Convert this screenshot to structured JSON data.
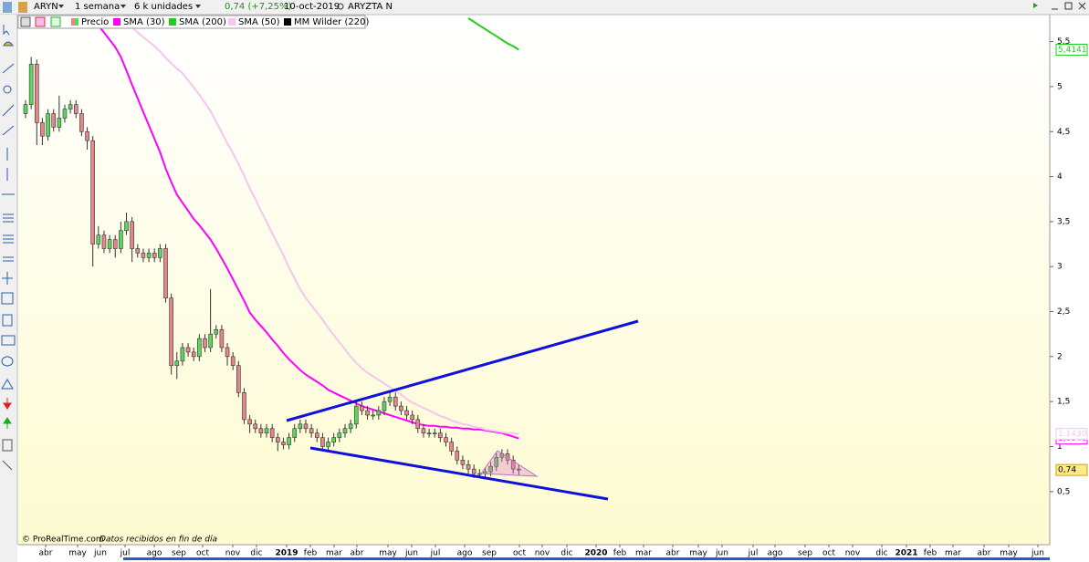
{
  "toolbar": {
    "symbol": "ARYN",
    "period": "1 semana",
    "units": "6 k unidades",
    "quote": "0,74 (+7,25%)",
    "date": "10-oct-2019",
    "name": "ARYZTA N"
  },
  "footer": {
    "copyright": "© ProRealTime.com",
    "note": "Datos recibidos en fin de día"
  },
  "chart_data": {
    "type": "candlestick",
    "ylim": [
      -0.09,
      5.78
    ],
    "yticks": [
      {
        "value": 0.5,
        "label": "0,5"
      },
      1,
      {
        "value": 1.5,
        "label": "1,5"
      },
      2,
      {
        "value": 2.5,
        "label": "2,5"
      },
      3,
      {
        "value": 3.5,
        "label": "3,5"
      },
      4,
      {
        "value": 4.5,
        "label": "4,5"
      },
      5,
      {
        "value": 5.5,
        "label": "5,5"
      }
    ],
    "x_labels": [
      "abr",
      "may",
      "jun",
      "jul",
      "ago",
      "sep",
      "oct",
      "nov",
      "dic",
      "2019",
      "feb",
      "mar",
      "abr",
      "may",
      "jun",
      "jul",
      "ago",
      "sep",
      "oct",
      "nov",
      "dic",
      "2020",
      "feb",
      "mar",
      "abr",
      "may",
      "jun",
      "jul",
      "ago",
      "sep",
      "oct",
      "nov",
      "dic",
      "2021",
      "feb",
      "mar",
      "abr",
      "may",
      "jun"
    ],
    "candles": {
      "name": "Precio",
      "color_up": "#5fd35f",
      "color_down": "#e3878b",
      "last_label": "0,74",
      "open": [
        4.7,
        4.8,
        5.25,
        4.6,
        4.45,
        4.7,
        4.55,
        4.65,
        4.75,
        4.8,
        4.7,
        4.5,
        4.4,
        3.25,
        3.35,
        3.2,
        3.3,
        3.2,
        3.4,
        3.5,
        3.2,
        3.15,
        3.1,
        3.15,
        3.1,
        3.2,
        2.65,
        1.9,
        1.95,
        2.1,
        2.05,
        2.0,
        2.2,
        2.1,
        2.25,
        2.3,
        2.1,
        2.0,
        1.9,
        1.6,
        1.3,
        1.25,
        1.2,
        1.15,
        1.2,
        1.1,
        1.05,
        1.02,
        1.1,
        1.2,
        1.25,
        1.2,
        1.15,
        1.1,
        1.0,
        1.05,
        1.1,
        1.15,
        1.2,
        1.25,
        1.45,
        1.4,
        1.35,
        1.35,
        1.4,
        1.5,
        1.55,
        1.45,
        1.4,
        1.35,
        1.3,
        1.2,
        1.15,
        1.15,
        1.15,
        1.1,
        1.05,
        0.95,
        0.85,
        0.8,
        0.75,
        0.7,
        0.7,
        0.72,
        0.78,
        0.88,
        0.92,
        0.85,
        0.75
      ],
      "high": [
        4.85,
        5.33,
        5.3,
        4.65,
        4.75,
        4.75,
        4.9,
        4.8,
        4.85,
        4.85,
        4.75,
        4.55,
        4.45,
        3.45,
        3.4,
        3.35,
        3.35,
        3.5,
        3.6,
        3.55,
        3.25,
        3.2,
        3.2,
        3.2,
        3.25,
        3.25,
        2.7,
        2.05,
        2.15,
        2.15,
        2.1,
        2.25,
        2.25,
        2.75,
        2.35,
        2.35,
        2.15,
        2.05,
        1.95,
        1.65,
        1.35,
        1.3,
        1.25,
        1.25,
        1.25,
        1.15,
        1.1,
        1.15,
        1.25,
        1.3,
        1.3,
        1.25,
        1.2,
        1.15,
        1.1,
        1.15,
        1.2,
        1.25,
        1.3,
        1.5,
        1.5,
        1.45,
        1.4,
        1.45,
        1.55,
        1.6,
        1.6,
        1.5,
        1.45,
        1.4,
        1.35,
        1.25,
        1.2,
        1.2,
        1.2,
        1.15,
        1.1,
        1.0,
        0.9,
        0.85,
        0.8,
        0.75,
        0.77,
        0.83,
        0.93,
        0.97,
        0.97,
        0.9,
        0.8
      ],
      "low": [
        4.65,
        4.75,
        4.35,
        4.35,
        4.4,
        4.5,
        4.5,
        4.6,
        4.7,
        4.65,
        4.45,
        4.3,
        3.0,
        3.2,
        3.15,
        3.15,
        3.1,
        3.15,
        3.35,
        3.05,
        3.1,
        3.05,
        3.05,
        3.05,
        3.05,
        2.6,
        1.8,
        1.75,
        1.9,
        2.0,
        1.95,
        1.95,
        2.05,
        2.05,
        2.2,
        2.05,
        1.9,
        1.85,
        1.55,
        1.25,
        1.15,
        1.15,
        1.1,
        1.1,
        1.05,
        0.95,
        0.97,
        0.97,
        1.05,
        1.15,
        1.15,
        1.1,
        1.05,
        0.95,
        0.95,
        1.0,
        1.05,
        1.1,
        1.15,
        1.2,
        1.35,
        1.3,
        1.3,
        1.3,
        1.35,
        1.45,
        1.4,
        1.35,
        1.3,
        1.25,
        1.15,
        1.1,
        1.1,
        1.1,
        1.05,
        1.0,
        0.9,
        0.8,
        0.75,
        0.7,
        0.65,
        0.65,
        0.65,
        0.67,
        0.73,
        0.83,
        0.8,
        0.7,
        0.68
      ],
      "close": [
        4.8,
        5.25,
        4.6,
        4.45,
        4.7,
        4.55,
        4.65,
        4.75,
        4.8,
        4.7,
        4.5,
        4.4,
        3.25,
        3.35,
        3.2,
        3.3,
        3.2,
        3.4,
        3.5,
        3.2,
        3.15,
        3.1,
        3.15,
        3.1,
        3.2,
        2.65,
        1.9,
        1.95,
        2.1,
        2.05,
        2.0,
        2.2,
        2.1,
        2.25,
        2.3,
        2.1,
        2.0,
        1.9,
        1.6,
        1.3,
        1.25,
        1.2,
        1.15,
        1.2,
        1.1,
        1.05,
        1.02,
        1.1,
        1.2,
        1.25,
        1.2,
        1.15,
        1.1,
        1.0,
        1.05,
        1.1,
        1.15,
        1.2,
        1.25,
        1.45,
        1.4,
        1.35,
        1.35,
        1.4,
        1.5,
        1.55,
        1.45,
        1.4,
        1.35,
        1.3,
        1.2,
        1.15,
        1.15,
        1.15,
        1.1,
        1.05,
        0.95,
        0.85,
        0.8,
        0.75,
        0.7,
        0.7,
        0.72,
        0.78,
        0.88,
        0.92,
        0.85,
        0.75,
        0.74
      ]
    },
    "series": [
      {
        "name": "SMA (30)",
        "color": "#ff00ff",
        "last_label": "1,0940",
        "values": [
          null,
          null,
          null,
          null,
          null,
          null,
          null,
          null,
          null,
          null,
          null,
          null,
          null,
          5.68,
          5.6,
          5.52,
          5.44,
          5.33,
          5.18,
          5.02,
          4.87,
          4.72,
          4.57,
          4.42,
          4.27,
          4.09,
          3.94,
          3.8,
          3.71,
          3.62,
          3.53,
          3.46,
          3.38,
          3.3,
          3.2,
          3.09,
          2.98,
          2.86,
          2.74,
          2.62,
          2.49,
          2.41,
          2.34,
          2.27,
          2.19,
          2.12,
          2.04,
          1.97,
          1.91,
          1.85,
          1.8,
          1.76,
          1.72,
          1.68,
          1.63,
          1.6,
          1.57,
          1.54,
          1.51,
          1.48,
          1.45,
          1.43,
          1.41,
          1.39,
          1.37,
          1.35,
          1.33,
          1.31,
          1.29,
          1.27,
          1.25,
          1.24,
          1.23,
          1.23,
          1.22,
          1.22,
          1.21,
          1.21,
          1.2,
          1.2,
          1.19,
          1.19,
          1.18,
          1.17,
          1.16,
          1.15,
          1.13,
          1.11,
          1.09
        ]
      },
      {
        "name": "SMA (200)",
        "color": "#22cc22",
        "last_label": "5,4141",
        "values": [
          null,
          null,
          null,
          null,
          null,
          null,
          null,
          null,
          null,
          null,
          null,
          null,
          null,
          null,
          null,
          null,
          null,
          null,
          null,
          null,
          null,
          null,
          null,
          null,
          null,
          null,
          null,
          null,
          null,
          null,
          null,
          null,
          null,
          null,
          null,
          null,
          null,
          null,
          null,
          null,
          null,
          null,
          null,
          null,
          null,
          null,
          null,
          null,
          null,
          null,
          null,
          null,
          null,
          null,
          null,
          null,
          null,
          null,
          null,
          null,
          null,
          null,
          null,
          null,
          null,
          null,
          null,
          null,
          null,
          null,
          null,
          null,
          null,
          null,
          null,
          null,
          null,
          null,
          null,
          5.76,
          5.72,
          5.68,
          5.64,
          5.6,
          5.56,
          5.52,
          5.48,
          5.45,
          5.41
        ]
      },
      {
        "name": "SMA (50)",
        "color": "#f4c6f0",
        "last_label": "1,1430",
        "values": [
          null,
          null,
          null,
          null,
          null,
          null,
          null,
          null,
          null,
          null,
          null,
          null,
          null,
          null,
          null,
          null,
          null,
          null,
          null,
          5.66,
          5.6,
          5.55,
          5.5,
          5.45,
          5.39,
          5.32,
          5.26,
          5.2,
          5.15,
          5.07,
          4.99,
          4.91,
          4.82,
          4.73,
          4.61,
          4.49,
          4.37,
          4.26,
          4.14,
          4.01,
          3.87,
          3.75,
          3.62,
          3.5,
          3.37,
          3.25,
          3.13,
          2.99,
          2.87,
          2.75,
          2.65,
          2.57,
          2.49,
          2.41,
          2.32,
          2.24,
          2.16,
          2.08,
          2.0,
          1.93,
          1.87,
          1.82,
          1.78,
          1.74,
          1.7,
          1.66,
          1.62,
          1.58,
          1.53,
          1.49,
          1.46,
          1.43,
          1.4,
          1.37,
          1.34,
          1.32,
          1.29,
          1.27,
          1.25,
          1.24,
          1.22,
          1.21,
          1.19,
          1.18,
          1.17,
          1.16,
          1.15,
          1.15,
          1.14
        ]
      },
      {
        "name": "MM Wilder (220)",
        "color": "#000000"
      }
    ]
  }
}
